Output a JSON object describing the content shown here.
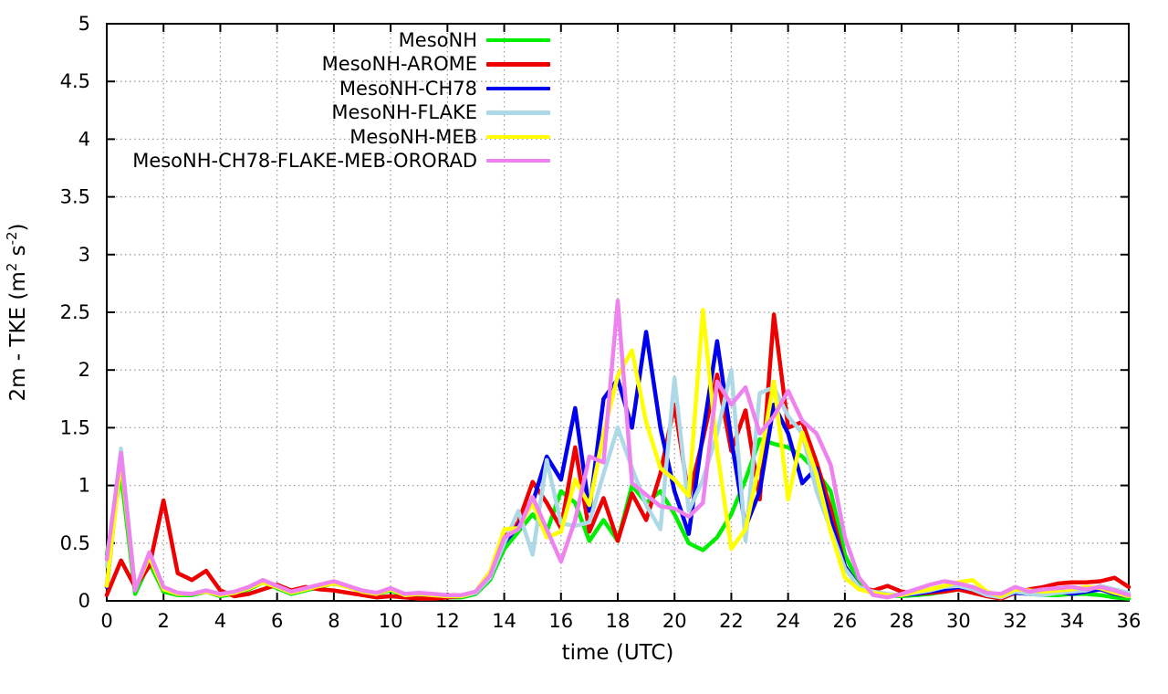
{
  "chart_data": {
    "type": "line",
    "title": "",
    "xlabel": "time (UTC)",
    "ylabel": "2m - TKE (m² s⁻²)",
    "ylabel_parts": [
      "2m - TKE (m",
      "2",
      " s",
      "-2",
      ")"
    ],
    "xlim": [
      0,
      36
    ],
    "ylim": [
      0,
      5
    ],
    "x_ticks": [
      0,
      2,
      4,
      6,
      8,
      10,
      12,
      14,
      16,
      18,
      20,
      22,
      24,
      26,
      28,
      30,
      32,
      34,
      36
    ],
    "x_tick_labels": [
      "0",
      "2",
      "4",
      "6",
      "8",
      "10",
      "12",
      "14",
      "16",
      "18",
      "20",
      "22",
      "24",
      "26",
      "28",
      "30",
      "32",
      "34",
      "36"
    ],
    "y_ticks": [
      0,
      0.5,
      1,
      1.5,
      2,
      2.5,
      3,
      3.5,
      4,
      4.5,
      5
    ],
    "y_tick_labels": [
      "0",
      "0.5",
      "1",
      "1.5",
      "2",
      "2.5",
      "3",
      "3.5",
      "4",
      "4.5",
      "5"
    ],
    "grid": true,
    "legend_position": "top-center-inside",
    "x": [
      0,
      0.5,
      1,
      1.5,
      2,
      2.5,
      3,
      3.5,
      4,
      4.5,
      5,
      5.5,
      6,
      6.5,
      7,
      7.5,
      8,
      8.5,
      9,
      9.5,
      10,
      10.5,
      11,
      11.5,
      12,
      12.5,
      13,
      13.5,
      14,
      14.5,
      15,
      15.5,
      16,
      16.5,
      17,
      17.5,
      18,
      18.5,
      19,
      19.5,
      20,
      20.5,
      21,
      21.5,
      22,
      22.5,
      23,
      23.5,
      24,
      24.5,
      25,
      25.5,
      26,
      26.5,
      27,
      27.5,
      28,
      28.5,
      29,
      29.5,
      30,
      30.5,
      31,
      31.5,
      32,
      32.5,
      33,
      33.5,
      34,
      34.5,
      35,
      35.5,
      36
    ],
    "series": [
      {
        "name": "MesoNH",
        "color": "#00ee00",
        "values": [
          0.4,
          1.1,
          0.06,
          0.33,
          0.08,
          0.05,
          0.05,
          0.08,
          0.04,
          0.06,
          0.1,
          0.16,
          0.11,
          0.06,
          0.09,
          0.12,
          0.15,
          0.12,
          0.08,
          0.06,
          0.09,
          0.04,
          0.05,
          0.04,
          0.03,
          0.03,
          0.06,
          0.18,
          0.45,
          0.6,
          0.75,
          0.6,
          0.95,
          0.85,
          0.52,
          0.7,
          0.52,
          1.0,
          0.85,
          0.95,
          0.75,
          0.5,
          0.44,
          0.55,
          0.75,
          1.05,
          1.4,
          1.36,
          1.33,
          1.25,
          1.12,
          0.95,
          0.4,
          0.15,
          0.08,
          0.05,
          0.04,
          0.05,
          0.06,
          0.08,
          0.1,
          0.12,
          0.06,
          0.05,
          0.09,
          0.06,
          0.05,
          0.05,
          0.06,
          0.06,
          0.05,
          0.03,
          0.02
        ]
      },
      {
        "name": "MesoNH-AROME",
        "color": "#ee0000",
        "values": [
          0.05,
          0.35,
          0.12,
          0.3,
          0.87,
          0.24,
          0.18,
          0.26,
          0.09,
          0.04,
          0.06,
          0.1,
          0.14,
          0.09,
          0.12,
          0.1,
          0.09,
          0.07,
          0.05,
          0.03,
          0.04,
          0.03,
          0.02,
          0.02,
          0.03,
          0.04,
          0.08,
          0.25,
          0.55,
          0.68,
          1.03,
          0.85,
          0.63,
          1.33,
          0.6,
          0.89,
          0.52,
          0.93,
          0.7,
          1.1,
          1.7,
          0.9,
          1.4,
          1.96,
          1.3,
          1.65,
          0.88,
          2.48,
          1.5,
          1.55,
          1.2,
          0.8,
          0.3,
          0.12,
          0.09,
          0.13,
          0.08,
          0.06,
          0.07,
          0.08,
          0.1,
          0.07,
          0.04,
          0.02,
          0.07,
          0.1,
          0.12,
          0.15,
          0.16,
          0.16,
          0.17,
          0.2,
          0.12
        ]
      },
      {
        "name": "MesoNH-CH78",
        "color": "#0000ee",
        "values": [
          0.12,
          1.25,
          0.1,
          0.38,
          0.1,
          0.06,
          0.06,
          0.08,
          0.05,
          0.07,
          0.11,
          0.17,
          0.12,
          0.07,
          0.1,
          0.13,
          0.16,
          0.12,
          0.08,
          0.06,
          0.1,
          0.05,
          0.06,
          0.05,
          0.04,
          0.04,
          0.07,
          0.2,
          0.5,
          0.65,
          0.85,
          1.25,
          1.05,
          1.67,
          0.78,
          1.75,
          1.92,
          1.5,
          2.33,
          1.5,
          0.95,
          0.58,
          1.45,
          2.25,
          1.4,
          0.64,
          0.95,
          1.7,
          1.45,
          1.02,
          1.15,
          0.7,
          0.3,
          0.12,
          0.07,
          0.05,
          0.05,
          0.06,
          0.08,
          0.1,
          0.12,
          0.1,
          0.05,
          0.04,
          0.07,
          0.06,
          0.06,
          0.08,
          0.06,
          0.08,
          0.1,
          0.06,
          0.04
        ]
      },
      {
        "name": "MesoNH-FLAKE",
        "color": "#add8e6",
        "values": [
          0.3,
          1.32,
          0.1,
          0.4,
          0.11,
          0.06,
          0.06,
          0.09,
          0.05,
          0.07,
          0.11,
          0.17,
          0.12,
          0.07,
          0.1,
          0.13,
          0.15,
          0.12,
          0.08,
          0.06,
          0.1,
          0.05,
          0.06,
          0.05,
          0.04,
          0.04,
          0.07,
          0.2,
          0.5,
          0.78,
          0.4,
          1.22,
          0.67,
          0.65,
          0.68,
          1.1,
          1.5,
          1.15,
          0.83,
          0.62,
          1.93,
          0.78,
          1.05,
          1.45,
          2.0,
          0.52,
          1.8,
          1.85,
          1.6,
          1.45,
          0.95,
          0.62,
          0.28,
          0.12,
          0.08,
          0.06,
          0.05,
          0.07,
          0.09,
          0.12,
          0.13,
          0.1,
          0.05,
          0.03,
          0.08,
          0.06,
          0.05,
          0.07,
          0.08,
          0.09,
          0.13,
          0.1,
          0.07
        ]
      },
      {
        "name": "MesoNH-MEB",
        "color": "#ffff00",
        "values": [
          0.13,
          1.22,
          0.1,
          0.38,
          0.1,
          0.06,
          0.06,
          0.08,
          0.05,
          0.07,
          0.11,
          0.16,
          0.12,
          0.07,
          0.1,
          0.13,
          0.15,
          0.12,
          0.08,
          0.06,
          0.1,
          0.05,
          0.06,
          0.05,
          0.04,
          0.04,
          0.08,
          0.25,
          0.62,
          0.63,
          0.85,
          0.55,
          0.6,
          1.05,
          0.83,
          1.45,
          1.95,
          2.17,
          1.55,
          1.15,
          1.05,
          0.91,
          2.52,
          1.3,
          0.45,
          0.62,
          1.2,
          1.9,
          0.88,
          1.46,
          1.1,
          0.6,
          0.2,
          0.1,
          0.07,
          0.05,
          0.05,
          0.08,
          0.1,
          0.13,
          0.16,
          0.18,
          0.08,
          0.04,
          0.1,
          0.09,
          0.08,
          0.09,
          0.1,
          0.12,
          0.11,
          0.07,
          0.04
        ]
      },
      {
        "name": "MesoNH-CH78-FLAKE-MEB-ORORAD",
        "color": "#ee82ee",
        "values": [
          0.36,
          1.28,
          0.09,
          0.42,
          0.12,
          0.07,
          0.06,
          0.09,
          0.06,
          0.08,
          0.12,
          0.18,
          0.13,
          0.08,
          0.11,
          0.14,
          0.17,
          0.13,
          0.09,
          0.07,
          0.11,
          0.06,
          0.07,
          0.06,
          0.05,
          0.05,
          0.08,
          0.22,
          0.55,
          0.62,
          0.9,
          0.62,
          0.34,
          0.7,
          1.25,
          1.2,
          2.6,
          1.02,
          0.92,
          0.82,
          0.8,
          0.73,
          0.85,
          1.9,
          1.7,
          1.85,
          1.45,
          1.6,
          1.82,
          1.56,
          1.45,
          1.18,
          0.55,
          0.2,
          0.05,
          0.03,
          0.06,
          0.1,
          0.14,
          0.17,
          0.15,
          0.12,
          0.07,
          0.06,
          0.12,
          0.08,
          0.1,
          0.11,
          0.12,
          0.1,
          0.12,
          0.09,
          0.05
        ]
      }
    ]
  },
  "colors": {
    "background": "#ffffff",
    "axis": "#000000",
    "grid": "#9e9e9e",
    "text": "#000000"
  }
}
